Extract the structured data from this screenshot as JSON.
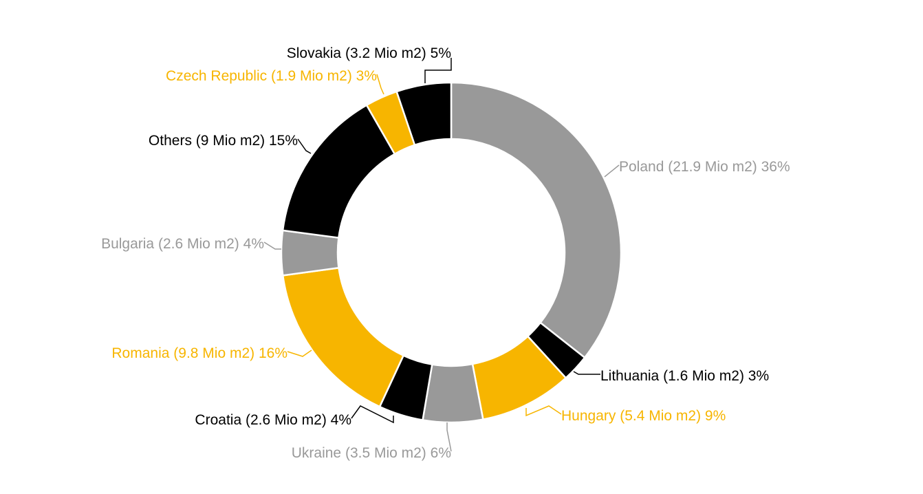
{
  "chart_data": {
    "type": "pie",
    "donut": true,
    "title": "",
    "legend": "none",
    "slices": [
      {
        "label": "Poland (21.9 Mio m2) 36%",
        "country": "Poland",
        "area_mio_m2": 21.9,
        "percent": 36,
        "color": "#999999"
      },
      {
        "label": "Lithuania (1.6 Mio m2) 3%",
        "country": "Lithuania",
        "area_mio_m2": 1.6,
        "percent": 3,
        "color": "#000000"
      },
      {
        "label": "Hungary (5.4 Mio m2) 9%",
        "country": "Hungary",
        "area_mio_m2": 5.4,
        "percent": 9,
        "color": "#F7B500"
      },
      {
        "label": "Ukraine (3.5 Mio m2) 6%",
        "country": "Ukraine",
        "area_mio_m2": 3.5,
        "percent": 6,
        "color": "#999999"
      },
      {
        "label": "Croatia (2.6 Mio m2) 4%",
        "country": "Croatia",
        "area_mio_m2": 2.6,
        "percent": 4,
        "color": "#000000"
      },
      {
        "label": "Romania (9.8 Mio m2) 16%",
        "country": "Romania",
        "area_mio_m2": 9.8,
        "percent": 16,
        "color": "#F7B500"
      },
      {
        "label": "Bulgaria (2.6 Mio m2) 4%",
        "country": "Bulgaria",
        "area_mio_m2": 2.6,
        "percent": 4,
        "color": "#999999"
      },
      {
        "label": "Others (9 Mio m2) 15%",
        "country": "Others",
        "area_mio_m2": 9,
        "percent": 15,
        "color": "#000000"
      },
      {
        "label": "Czech Republic (1.9 Mio m2) 3%",
        "country": "Czech Republic",
        "area_mio_m2": 1.9,
        "percent": 3,
        "color": "#F7B500"
      },
      {
        "label": "Slovakia (3.2 Mio m2) 5%",
        "country": "Slovakia",
        "area_mio_m2": 3.2,
        "percent": 5,
        "color": "#000000"
      }
    ]
  }
}
